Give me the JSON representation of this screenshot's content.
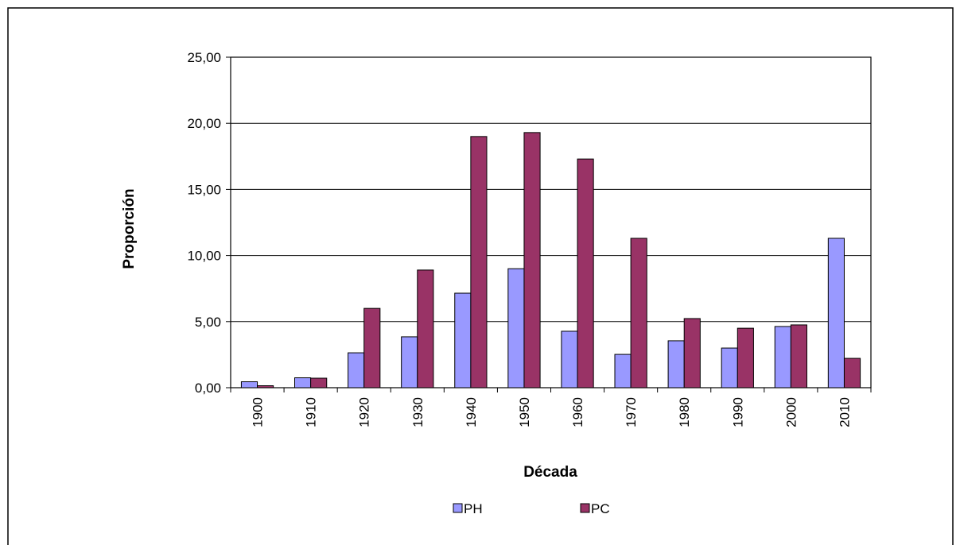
{
  "chart_data": {
    "type": "bar",
    "x_label": "Década",
    "y_label": "Proporción",
    "categories": [
      "1900",
      "1910",
      "1920",
      "1930",
      "1940",
      "1950",
      "1960",
      "1970",
      "1980",
      "1990",
      "2000",
      "2010"
    ],
    "series": [
      {
        "name": "PH",
        "color": "#9999ff",
        "values": [
          0.45,
          0.75,
          2.64,
          3.85,
          7.15,
          9.0,
          4.27,
          2.52,
          3.55,
          3.0,
          4.63,
          11.3
        ]
      },
      {
        "name": "PC",
        "color": "#993366",
        "values": [
          0.15,
          0.72,
          6.0,
          8.9,
          19.0,
          19.3,
          17.3,
          11.3,
          5.23,
          4.5,
          4.75,
          2.22
        ]
      }
    ],
    "ylim": [
      0,
      25
    ],
    "yticks": [
      {
        "value": 0,
        "label": "0,00"
      },
      {
        "value": 5,
        "label": "5,00"
      },
      {
        "value": 10,
        "label": "10,00"
      },
      {
        "value": 15,
        "label": "15,00"
      },
      {
        "value": 20,
        "label": "20,00"
      },
      {
        "value": 25,
        "label": "25,00"
      }
    ],
    "grid": true,
    "legend": "bottom"
  }
}
